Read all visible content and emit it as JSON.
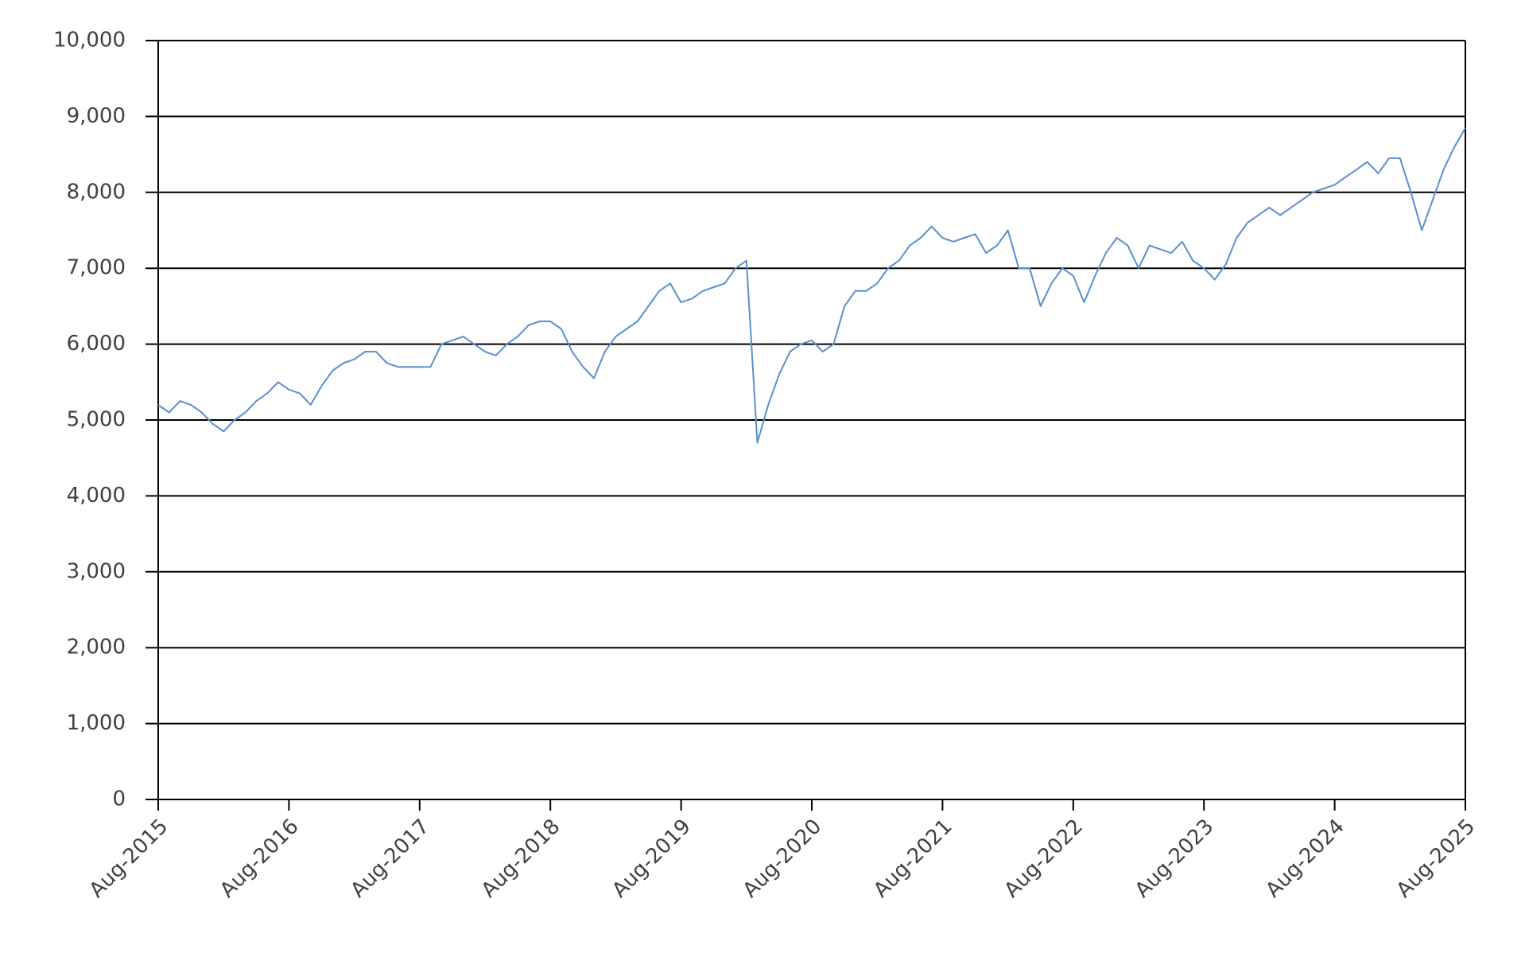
{
  "chart_data": {
    "type": "line",
    "x": [
      "2015-08",
      "2015-09",
      "2015-10",
      "2015-11",
      "2015-12",
      "2016-01",
      "2016-02",
      "2016-03",
      "2016-04",
      "2016-05",
      "2016-06",
      "2016-07",
      "2016-08",
      "2016-09",
      "2016-10",
      "2016-11",
      "2016-12",
      "2017-01",
      "2017-02",
      "2017-03",
      "2017-04",
      "2017-05",
      "2017-06",
      "2017-07",
      "2017-08",
      "2017-09",
      "2017-10",
      "2017-11",
      "2017-12",
      "2018-01",
      "2018-02",
      "2018-03",
      "2018-04",
      "2018-05",
      "2018-06",
      "2018-07",
      "2018-08",
      "2018-09",
      "2018-10",
      "2018-11",
      "2018-12",
      "2019-01",
      "2019-02",
      "2019-03",
      "2019-04",
      "2019-05",
      "2019-06",
      "2019-07",
      "2019-08",
      "2019-09",
      "2019-10",
      "2019-11",
      "2019-12",
      "2020-01",
      "2020-02",
      "2020-03",
      "2020-04",
      "2020-05",
      "2020-06",
      "2020-07",
      "2020-08",
      "2020-09",
      "2020-10",
      "2020-11",
      "2020-12",
      "2021-01",
      "2021-02",
      "2021-03",
      "2021-04",
      "2021-05",
      "2021-06",
      "2021-07",
      "2021-08",
      "2021-09",
      "2021-10",
      "2021-11",
      "2021-12",
      "2022-01",
      "2022-02",
      "2022-03",
      "2022-04",
      "2022-05",
      "2022-06",
      "2022-07",
      "2022-08",
      "2022-09",
      "2022-10",
      "2022-11",
      "2022-12",
      "2023-01",
      "2023-02",
      "2023-03",
      "2023-04",
      "2023-05",
      "2023-06",
      "2023-07",
      "2023-08",
      "2023-09",
      "2023-10",
      "2023-11",
      "2023-12",
      "2024-01",
      "2024-02",
      "2024-03",
      "2024-04",
      "2024-05",
      "2024-06",
      "2024-07",
      "2024-08",
      "2024-09",
      "2024-10",
      "2024-11",
      "2024-12",
      "2025-01",
      "2025-02",
      "2025-03",
      "2025-04",
      "2025-05",
      "2025-06",
      "2025-07",
      "2025-08"
    ],
    "values": [
      5200,
      5100,
      5250,
      5200,
      5100,
      4950,
      4850,
      5000,
      5100,
      5250,
      5350,
      5500,
      5400,
      5350,
      5200,
      5450,
      5650,
      5750,
      5800,
      5900,
      5900,
      5750,
      5700,
      5700,
      5700,
      5700,
      6000,
      6050,
      6100,
      6000,
      5900,
      5850,
      6000,
      6100,
      6250,
      6300,
      6300,
      6200,
      5900,
      5700,
      5550,
      5900,
      6100,
      6200,
      6300,
      6500,
      6700,
      6800,
      6550,
      6600,
      6700,
      6750,
      6800,
      7000,
      7100,
      4700,
      5200,
      5600,
      5900,
      6000,
      6050,
      5900,
      6000,
      6500,
      6700,
      6700,
      6800,
      7000,
      7100,
      7300,
      7400,
      7550,
      7400,
      7350,
      7400,
      7450,
      7200,
      7300,
      7500,
      7000,
      7000,
      6500,
      6800,
      7000,
      6900,
      6550,
      6900,
      7200,
      7400,
      7300,
      7000,
      7300,
      7250,
      7200,
      7350,
      7100,
      7000,
      6850,
      7050,
      7400,
      7600,
      7700,
      7800,
      7700,
      7800,
      7900,
      8000,
      8050,
      8100,
      8200,
      8300,
      8400,
      8250,
      8450,
      8450,
      8000,
      7500,
      7900,
      8300,
      8600,
      8850
    ],
    "color": "#5b8fcc",
    "ylim": [
      0,
      10000
    ],
    "yticks": [
      {
        "value": 0,
        "label": "0"
      },
      {
        "value": 1000,
        "label": "1,000"
      },
      {
        "value": 2000,
        "label": "2,000"
      },
      {
        "value": 3000,
        "label": "3,000"
      },
      {
        "value": 4000,
        "label": "4,000"
      },
      {
        "value": 5000,
        "label": "5,000"
      },
      {
        "value": 6000,
        "label": "6,000"
      },
      {
        "value": 7000,
        "label": "7,000"
      },
      {
        "value": 8000,
        "label": "8,000"
      },
      {
        "value": 9000,
        "label": "9,000"
      },
      {
        "value": 10000,
        "label": "10,000"
      }
    ],
    "xlim": [
      "2015-08",
      "2025-08"
    ],
    "xticks": [
      {
        "value": "2015-08",
        "label": "Aug-2015"
      },
      {
        "value": "2016-08",
        "label": "Aug-2016"
      },
      {
        "value": "2017-08",
        "label": "Aug-2017"
      },
      {
        "value": "2018-08",
        "label": "Aug-2018"
      },
      {
        "value": "2019-08",
        "label": "Aug-2019"
      },
      {
        "value": "2020-08",
        "label": "Aug-2020"
      },
      {
        "value": "2021-08",
        "label": "Aug-2021"
      },
      {
        "value": "2022-08",
        "label": "Aug-2022"
      },
      {
        "value": "2023-08",
        "label": "Aug-2023"
      },
      {
        "value": "2024-08",
        "label": "Aug-2024"
      },
      {
        "value": "2025-08",
        "label": "Aug-2025"
      }
    ],
    "grid": true
  }
}
